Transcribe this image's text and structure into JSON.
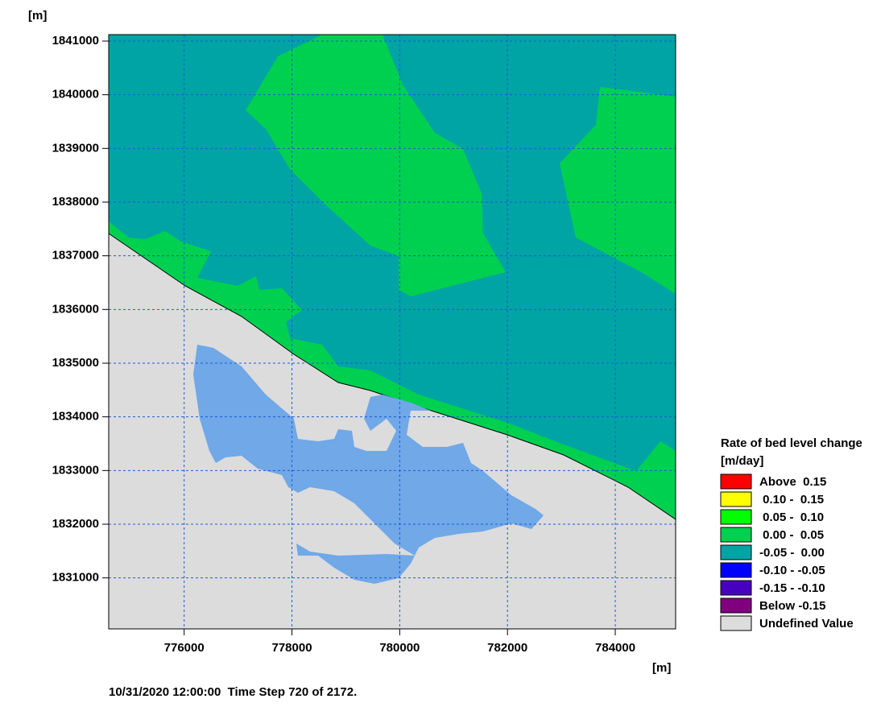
{
  "map": {
    "x_unit": "[m]",
    "y_unit": "[m]",
    "xlim": [
      774600,
      785120
    ],
    "ylim": [
      1830050,
      1841120
    ],
    "xticks": [
      776000,
      778000,
      780000,
      782000,
      784000
    ],
    "yticks": [
      1831000,
      1832000,
      1833000,
      1834000,
      1835000,
      1836000,
      1837000,
      1838000,
      1839000,
      1840000,
      1841000
    ],
    "grid": true,
    "legend": {
      "title": "Rate of bed level change",
      "unit": "[m/day]",
      "items": [
        {
          "label": "Above  0.15",
          "color": "#ff0000"
        },
        {
          "label": " 0.10 -  0.15",
          "color": "#ffff00"
        },
        {
          "label": " 0.05 -  0.10",
          "color": "#00ff00"
        },
        {
          "label": " 0.00 -  0.05",
          "color": "#00d050"
        },
        {
          "label": "-0.05 -  0.00",
          "color": "#00a4a4"
        },
        {
          "label": "-0.10 - -0.05",
          "color": "#0000ff"
        },
        {
          "label": "-0.15 - -0.10",
          "color": "#4800c0"
        },
        {
          "label": "Below -0.15",
          "color": "#800080"
        },
        {
          "label": "Undefined Value",
          "color": "#dcdcdc"
        }
      ]
    },
    "footer": "10/31/2020 12:00:00  Time Step 720 of 2172."
  }
}
